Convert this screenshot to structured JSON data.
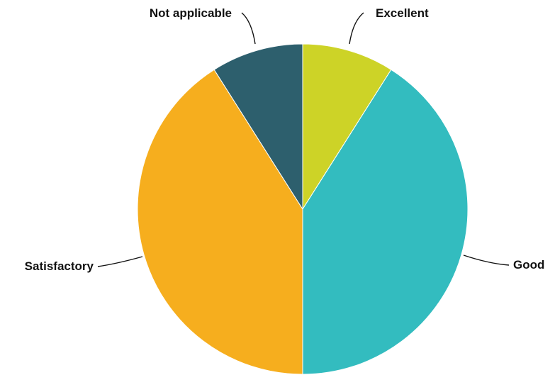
{
  "chart_data": {
    "type": "pie",
    "title": "",
    "slices": [
      {
        "label": "Excellent",
        "value": 9,
        "color": "#CDD327"
      },
      {
        "label": "Good",
        "value": 41,
        "color": "#33BCBF"
      },
      {
        "label": "Satisfactory",
        "value": 41,
        "color": "#F6AE1E"
      },
      {
        "label": "Not applicable",
        "value": 9,
        "color": "#2D5F6D"
      }
    ],
    "start": "12 o'clock",
    "direction": "clockwise",
    "labels": "outside with leader lines"
  }
}
